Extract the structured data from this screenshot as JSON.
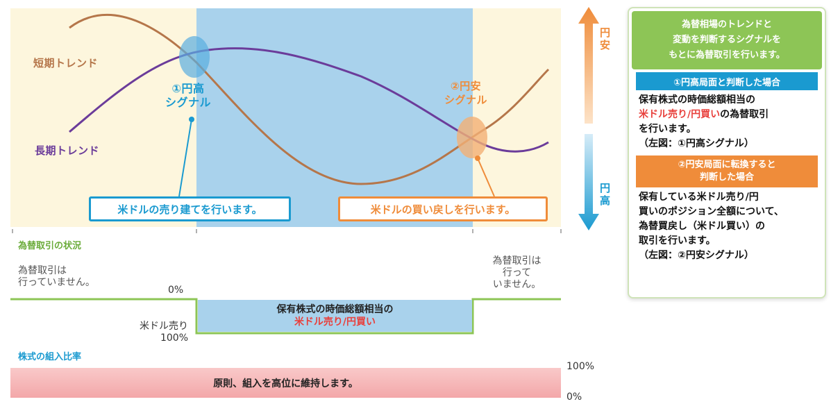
{
  "colors": {
    "bg_band": "#fdf6dd",
    "blue_band": "#a9d2ec",
    "short_trend": "#b5764a",
    "long_trend": "#6b3c9a",
    "blue": "#1a9ad0",
    "orange": "#ef8c3a",
    "green": "#8dc556",
    "red": "#e8403c",
    "pink": "#f7b6b6"
  },
  "chart": {
    "short_trend_label": "短期トレンド",
    "long_trend_label": "長期トレンド",
    "signal_high_label_line1": "①円高",
    "signal_high_label_line2": "シグナル",
    "signal_low_label_line1": "②円安",
    "signal_low_label_line2": "シグナル",
    "sell_box": "米ドルの売り建てを行います。",
    "buyback_box": "米ドルの買い戻しを行います。",
    "axis_top": "円安",
    "axis_bottom": "円高"
  },
  "lower": {
    "fx_status_title": "為替取引の状況",
    "fx_none_left_l1": "為替取引は",
    "fx_none_left_l2": "行っていません。",
    "zero_left": "0%",
    "fx_none_right_l1": "為替取引は",
    "fx_none_right_l2": "行って",
    "fx_none_right_l3": "いません。",
    "hedge_line1": "保有株式の時価総額相当の",
    "hedge_line2": "米ドル売り/円買い",
    "usd_sell_label": "米ドル売り",
    "hundred_left": "100%",
    "equity_title": "株式の組入比率",
    "equity_band": "原則、組入を高位に維持します。",
    "pct_100": "100%",
    "pct_0": "0%"
  },
  "panel": {
    "header": [
      "為替相場のトレンドと",
      "変動を判断するシグナルを",
      "もとに為替取引を行います。"
    ],
    "case1_title": "①円高局面と判断した場合",
    "case1_l1": "保有株式の時価総額相当の",
    "case1_l2_red": "米ドル売り/円買い",
    "case1_l2_rest": "の為替取引",
    "case1_l3": "を行います。",
    "case1_l4": "（左図：①円高シグナル）",
    "case2_title_l1": "②円安局面に転換すると",
    "case2_title_l2": "判断した場合",
    "case2_l1": "保有している米ドル売り/円",
    "case2_l2": "買いのポジション全額について、",
    "case2_l3": "為替買戻し（米ドル買い）の",
    "case2_l4": "取引を行います。",
    "case2_l5": "（左図：②円安シグナル）"
  }
}
